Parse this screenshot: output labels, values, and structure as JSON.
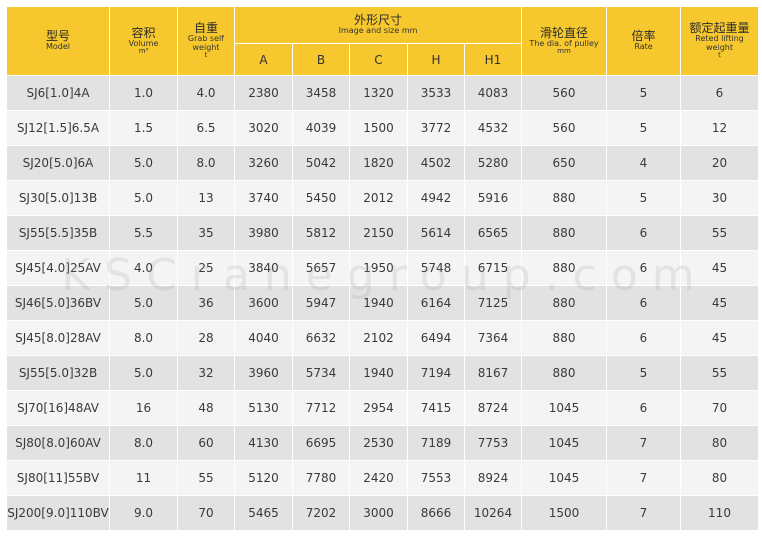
{
  "header": {
    "model": {
      "cn": "型号",
      "en": "Model"
    },
    "volume": {
      "cn": "容积",
      "en": "Volume",
      "unit": "m³"
    },
    "weight": {
      "cn": "自重",
      "en": "Grab self weight",
      "unit": "t"
    },
    "size": {
      "cn": "外形尺寸",
      "en": "Image and size    mm"
    },
    "size_cols": [
      "A",
      "B",
      "C",
      "H",
      "H1"
    ],
    "pulley": {
      "cn": "滑轮直径",
      "en": "The dia. of pulley",
      "unit": "mm"
    },
    "rate": {
      "cn": "倍率",
      "en": "Rate"
    },
    "lifting": {
      "cn": "额定起重量",
      "en": "Reted lifting weight",
      "unit": "t"
    }
  },
  "rows": [
    [
      "SJ6[1.0]4A",
      "1.0",
      "4.0",
      "2380",
      "3458",
      "1320",
      "3533",
      "4083",
      "560",
      "5",
      "6"
    ],
    [
      "SJ12[1.5]6.5A",
      "1.5",
      "6.5",
      "3020",
      "4039",
      "1500",
      "3772",
      "4532",
      "560",
      "5",
      "12"
    ],
    [
      "SJ20[5.0]6A",
      "5.0",
      "8.0",
      "3260",
      "5042",
      "1820",
      "4502",
      "5280",
      "650",
      "4",
      "20"
    ],
    [
      "SJ30[5.0]13B",
      "5.0",
      "13",
      "3740",
      "5450",
      "2012",
      "4942",
      "5916",
      "880",
      "5",
      "30"
    ],
    [
      "SJ55[5.5]35B",
      "5.5",
      "35",
      "3980",
      "5812",
      "2150",
      "5614",
      "6565",
      "880",
      "6",
      "55"
    ],
    [
      "SJ45[4.0]25AV",
      "4.0",
      "25",
      "3840",
      "5657",
      "1950",
      "5748",
      "6715",
      "880",
      "6",
      "45"
    ],
    [
      "SJ46[5.0]36BV",
      "5.0",
      "36",
      "3600",
      "5947",
      "1940",
      "6164",
      "7125",
      "880",
      "6",
      "45"
    ],
    [
      "SJ45[8.0]28AV",
      "8.0",
      "28",
      "4040",
      "6632",
      "2102",
      "6494",
      "7364",
      "880",
      "6",
      "45"
    ],
    [
      "SJ55[5.0]32B",
      "5.0",
      "32",
      "3960",
      "5734",
      "1940",
      "7194",
      "8167",
      "880",
      "5",
      "55"
    ],
    [
      "SJ70[16]48AV",
      "16",
      "48",
      "5130",
      "7712",
      "2954",
      "7415",
      "8724",
      "1045",
      "6",
      "70"
    ],
    [
      "SJ80[8.0]60AV",
      "8.0",
      "60",
      "4130",
      "6695",
      "2530",
      "7189",
      "7753",
      "1045",
      "7",
      "80"
    ],
    [
      "SJ80[11]55BV",
      "11",
      "55",
      "5120",
      "7780",
      "2420",
      "7553",
      "8924",
      "1045",
      "7",
      "80"
    ],
    [
      "SJ200[9.0]110BV",
      "9.0",
      "70",
      "5465",
      "7202",
      "3000",
      "8666",
      "10264",
      "1500",
      "7",
      "110"
    ]
  ],
  "watermark": "KSCranegroup.com",
  "colors": {
    "header_bg": "#f7c82e",
    "row_odd": "#e2e2e2",
    "row_even": "#f4f4f4"
  }
}
